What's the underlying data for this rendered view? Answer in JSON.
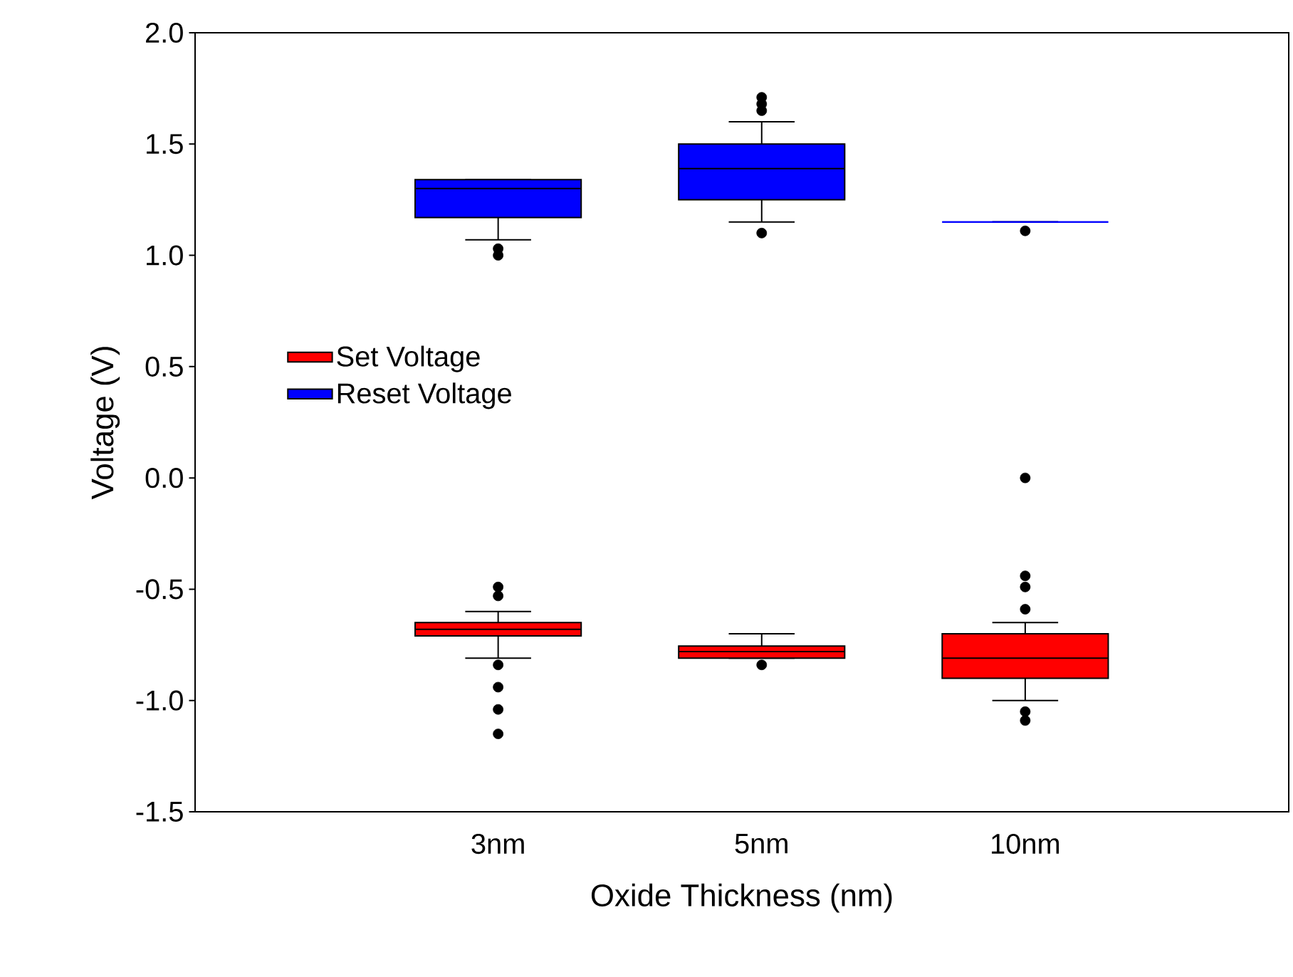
{
  "chart_data": {
    "type": "box",
    "xlabel": "Oxide Thickness (nm)",
    "ylabel": "Voltage (V)",
    "categories": [
      "3nm",
      "5nm",
      "10nm"
    ],
    "ylim": [
      -1.5,
      2.0
    ],
    "yticks": [
      {
        "value": -1.5,
        "label": "-1.5"
      },
      {
        "value": -1.0,
        "label": "-1.0"
      },
      {
        "value": -0.5,
        "label": "-0.5"
      },
      {
        "value": 0,
        "label": "0.0"
      },
      {
        "value": 0.5,
        "label": "0.5"
      },
      {
        "value": 1.0,
        "label": "1.0"
      },
      {
        "value": 1.5,
        "label": "1.5"
      },
      {
        "value": 2.0,
        "label": "2.0"
      }
    ],
    "legend": "left",
    "series": [
      {
        "name": "Set Voltage",
        "color": "#ff0000",
        "boxes": [
          {
            "low": -0.81,
            "q1": -0.71,
            "median": -0.68,
            "q3": -0.65,
            "high": -0.6,
            "outliers": [
              -0.49,
              -0.53,
              -0.84,
              -0.94,
              -1.04,
              -1.15
            ]
          },
          {
            "low": -0.81,
            "q1": -0.81,
            "median": -0.78,
            "q3": -0.755,
            "high": -0.7,
            "outliers": [
              -0.84
            ]
          },
          {
            "low": -1.0,
            "q1": -0.9,
            "median": -0.81,
            "q3": -0.7,
            "high": -0.65,
            "outliers": [
              0.0,
              -0.44,
              -0.49,
              -0.59,
              -1.05,
              -1.09
            ]
          }
        ]
      },
      {
        "name": "Reset Voltage",
        "color": "#0000ff",
        "boxes": [
          {
            "low": 1.07,
            "q1": 1.17,
            "median": 1.3,
            "q3": 1.34,
            "high": 1.34,
            "outliers": [
              1.03,
              1.0
            ]
          },
          {
            "low": 1.15,
            "q1": 1.25,
            "median": 1.39,
            "q3": 1.5,
            "high": 1.6,
            "outliers": [
              1.71,
              1.68,
              1.65,
              1.1
            ]
          },
          {
            "low": 1.15,
            "q1": 1.15,
            "median": 1.15,
            "q3": 1.15,
            "high": 1.15,
            "outliers": [
              1.11
            ]
          }
        ]
      }
    ]
  }
}
